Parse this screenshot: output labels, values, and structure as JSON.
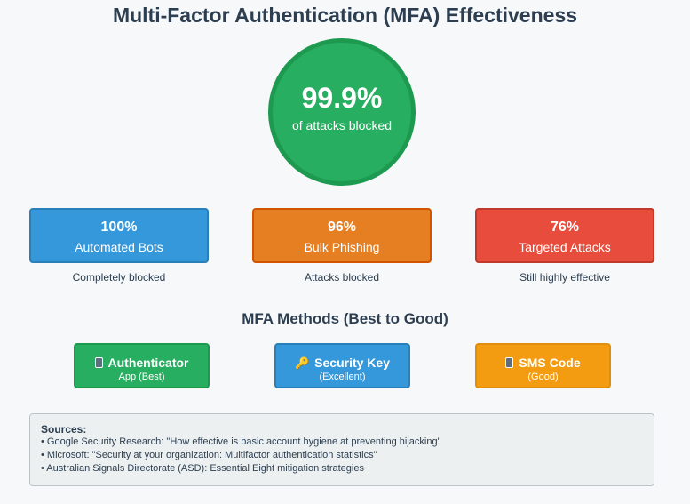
{
  "title": "Multi-Factor Authentication (MFA) Effectiveness",
  "hero": {
    "value": "99.9%",
    "caption": "of attacks blocked",
    "color": "#27ae60"
  },
  "stats": [
    {
      "value": "100%",
      "label": "Automated Bots",
      "note": "Completely blocked",
      "color": "#3498db"
    },
    {
      "value": "96%",
      "label": "Bulk Phishing",
      "note": "Attacks blocked",
      "color": "#e67e22"
    },
    {
      "value": "76%",
      "label": "Targeted Attacks",
      "note": "Still highly effective",
      "color": "#e74c3c"
    }
  ],
  "methods_title": "MFA Methods (Best to Good)",
  "methods": [
    {
      "icon": "phone-icon",
      "name": "Authenticator",
      "note": "App (Best)",
      "color": "#27ae60"
    },
    {
      "icon": "key-icon",
      "name": "Security Key",
      "note": "(Excellent)",
      "color": "#3498db"
    },
    {
      "icon": "phone-icon",
      "name": "SMS Code",
      "note": "(Good)",
      "color": "#f39c12"
    }
  ],
  "sources": {
    "title": "Sources:",
    "items": [
      "• Google Security Research: \"How effective is basic account hygiene at preventing hijacking\"",
      "• Microsoft: \"Security at your organization: Multifactor authentication statistics\"",
      "• Australian Signals Directorate (ASD): Essential Eight mitigation strategies"
    ]
  }
}
